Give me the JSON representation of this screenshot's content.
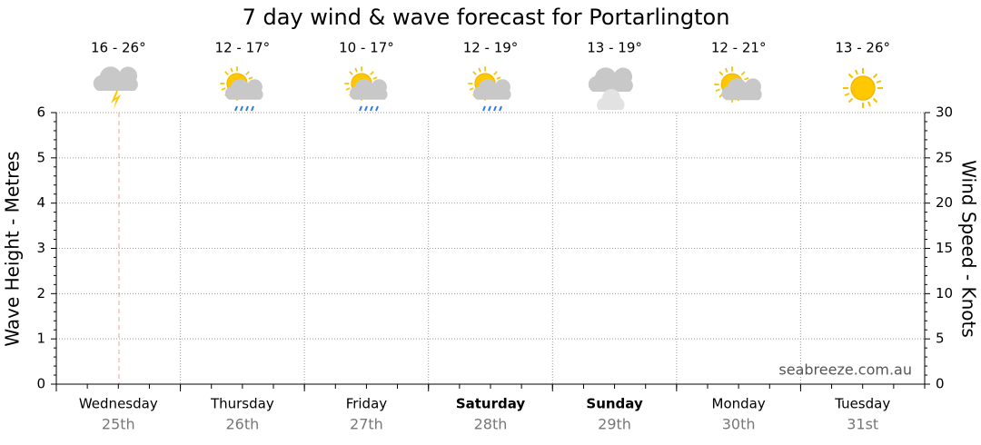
{
  "chart_data": {
    "type": "line",
    "title": "7 day wind & wave forecast for Portarlington",
    "categories": [
      "Wednesday",
      "Thursday",
      "Friday",
      "Saturday",
      "Sunday",
      "Monday",
      "Tuesday"
    ],
    "dates": [
      "25th",
      "26th",
      "27th",
      "28th",
      "29th",
      "30th",
      "31st"
    ],
    "temperatures": [
      "16 - 26°",
      "12 - 17°",
      "10 - 17°",
      "12 - 19°",
      "13 - 19°",
      "12 - 21°",
      "13 - 26°"
    ],
    "y_label": "Wave Height - Metres",
    "y2_label": "Wind Speed - Knots",
    "watermark": "seabreeze.com.au",
    "ylim": [
      0,
      6
    ],
    "yticks": [
      0,
      1,
      2,
      3,
      4,
      5,
      6
    ],
    "y2lim": [
      0,
      30
    ],
    "y2ticks": [
      0,
      5,
      10,
      15,
      20,
      25,
      30
    ],
    "grid": true,
    "series": []
  }
}
